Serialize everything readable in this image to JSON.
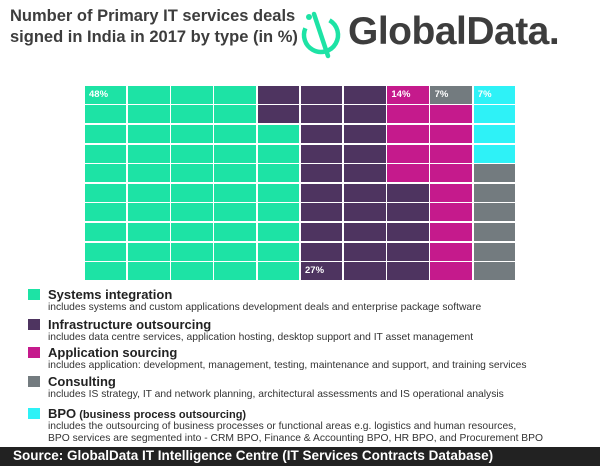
{
  "header": {
    "title": "Number of Primary IT services deals signed in India in 2017 by type (in %)",
    "logo_text": "GlobalData."
  },
  "chart_data": {
    "type": "waffle",
    "title": "Number of Primary IT services deals signed in India in 2017 by type (in %)",
    "unit": "%",
    "grid": {
      "columns": 10,
      "rows": 10
    },
    "series": [
      {
        "name": "Systems integration",
        "value": 48,
        "label": "48%",
        "color": "#1de3a5"
      },
      {
        "name": "Infrastructure outsourcing",
        "value": 27,
        "label": "27%",
        "color": "#4e3460"
      },
      {
        "name": "Application sourcing",
        "value": 14,
        "label": "14%",
        "color": "#c51a8c"
      },
      {
        "name": "Consulting",
        "value": 7,
        "label": "7%",
        "color": "#737b7f"
      },
      {
        "name": "BPO",
        "value": 7,
        "label": "7%",
        "color": "#2ef2f7"
      }
    ]
  },
  "legend": [
    {
      "name": "Systems integration",
      "qualifier": "",
      "color": "#1de3a5",
      "desc": [
        "includes systems and custom applications development deals and enterprise package software"
      ]
    },
    {
      "name": "Infrastructure outsourcing",
      "qualifier": "",
      "color": "#4e3460",
      "desc": [
        "includes data centre services, application hosting, desktop support and IT asset management"
      ]
    },
    {
      "name": "Application sourcing",
      "qualifier": "",
      "color": "#c51a8c",
      "desc": [
        "includes application: development, management, testing, maintenance and support, and training services"
      ]
    },
    {
      "name": "Consulting",
      "qualifier": "",
      "color": "#737b7f",
      "desc": [
        "includes IS strategy, IT and network planning, architectural assessments and IS operational analysis"
      ]
    },
    {
      "name": "BPO",
      "qualifier": "(business process outsourcing)",
      "color": "#2ef2f7",
      "desc": [
        "includes the outsourcing of business processes or functional areas e.g. logistics and human resources,",
        "BPO services are segmented into - CRM BPO, Finance & Accounting BPO, HR BPO, and Procurement BPO"
      ]
    }
  ],
  "footer": {
    "source": "Source: GlobalData IT Intelligence Centre (IT Services Contracts Database)"
  }
}
